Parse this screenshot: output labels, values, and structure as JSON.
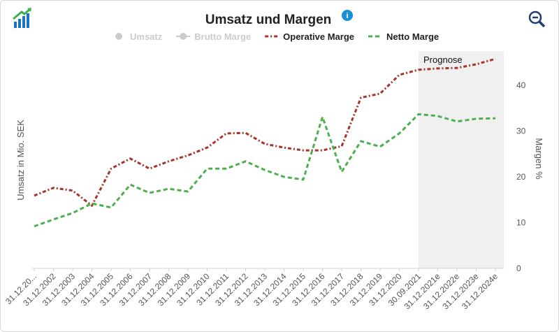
{
  "chart_data": {
    "type": "line",
    "title": "Umsatz und Margen",
    "y_label": "Umsatz in Mio. SEK",
    "y2_label": "Margen %",
    "categories": [
      "31.12.20...",
      "31.12.2002",
      "31.12.2003",
      "31.12.2004",
      "31.12.2005",
      "31.12.2006",
      "31.12.2007",
      "31.12.2008",
      "31.12.2009",
      "31.12.2010",
      "31.12.2011",
      "31.12.2012",
      "31.12.2013",
      "31.12.2014",
      "31.12.2015",
      "31.12.2016",
      "31.12.2017",
      "31.12.2018",
      "31.12.2019",
      "31.12.2020",
      "30.09.2021",
      "31.12.2021e",
      "31.12.2022e",
      "31.12.2023e",
      "31.12.2024e"
    ],
    "hidden_series": [
      "Umsatz",
      "Brutto Marge"
    ],
    "series": [
      {
        "name": "Operative Marge",
        "color": "#a5352b",
        "axis": "y2",
        "values": [
          15.9,
          17.6,
          17.0,
          13.7,
          21.8,
          24.0,
          21.8,
          23.4,
          24.7,
          26.4,
          29.5,
          29.6,
          27.2,
          26.4,
          25.8,
          25.8,
          26.7,
          37.3,
          38.2,
          42.3,
          43.4,
          43.7,
          43.8,
          44.6,
          45.8
        ]
      },
      {
        "name": "Netto Marge",
        "color": "#4caf50",
        "axis": "y2",
        "values": [
          9.2,
          10.7,
          12.1,
          14.2,
          13.3,
          18.3,
          16.5,
          17.4,
          16.8,
          21.8,
          21.8,
          23.4,
          21.5,
          20.0,
          19.4,
          33.1,
          21.1,
          27.8,
          26.6,
          29.5,
          33.7,
          33.3,
          32.1,
          32.7,
          32.8
        ]
      }
    ],
    "y2lim": [
      0,
      47.5
    ],
    "y2ticks": [
      0,
      10,
      20,
      30,
      40
    ],
    "forecast": {
      "label": "Prognose",
      "start": "30.09.2021"
    }
  }
}
